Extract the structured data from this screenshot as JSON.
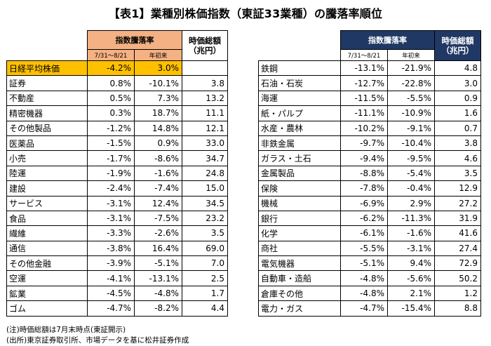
{
  "title": "【表1】業種別株価指数（東証33業種）の騰落率順位",
  "headers": {
    "change": "指数騰落率",
    "period1": "7/31～8/21",
    "period2": "年初来",
    "market_cap": "時価総額\n（兆円）"
  },
  "left_rows": [
    {
      "name": "日経平均株価",
      "p1": "-4.2%",
      "p2": "3.0%",
      "cap": ""
    },
    {
      "name": "証券",
      "p1": "0.8%",
      "p2": "-10.1%",
      "cap": "3.8"
    },
    {
      "name": "不動産",
      "p1": "0.5%",
      "p2": "7.3%",
      "cap": "13.2"
    },
    {
      "name": "精密機器",
      "p1": "0.3%",
      "p2": "18.7%",
      "cap": "11.1"
    },
    {
      "name": "その他製品",
      "p1": "-1.2%",
      "p2": "14.8%",
      "cap": "12.1"
    },
    {
      "name": "医薬品",
      "p1": "-1.5%",
      "p2": "0.9%",
      "cap": "33.0"
    },
    {
      "name": "小売",
      "p1": "-1.7%",
      "p2": "-8.6%",
      "cap": "34.7"
    },
    {
      "name": "陸運",
      "p1": "-1.9%",
      "p2": "-1.6%",
      "cap": "24.8"
    },
    {
      "name": "建設",
      "p1": "-2.4%",
      "p2": "-7.4%",
      "cap": "15.0"
    },
    {
      "name": "サービス",
      "p1": "-3.1%",
      "p2": "12.4%",
      "cap": "34.5"
    },
    {
      "name": "食品",
      "p1": "-3.1%",
      "p2": "-7.5%",
      "cap": "23.2"
    },
    {
      "name": "繊維",
      "p1": "-3.3%",
      "p2": "-2.6%",
      "cap": "3.5"
    },
    {
      "name": "通信",
      "p1": "-3.8%",
      "p2": "16.4%",
      "cap": "69.0"
    },
    {
      "name": "その他金融",
      "p1": "-3.9%",
      "p2": "-5.1%",
      "cap": "7.0"
    },
    {
      "name": "空運",
      "p1": "-4.1%",
      "p2": "-13.1%",
      "cap": "2.5"
    },
    {
      "name": "鉱業",
      "p1": "-4.5%",
      "p2": "-4.8%",
      "cap": "1.7"
    },
    {
      "name": "ゴム",
      "p1": "-4.7%",
      "p2": "-8.2%",
      "cap": "4.4"
    }
  ],
  "right_rows": [
    {
      "name": "鉄鋼",
      "p1": "-13.1%",
      "p2": "-21.9%",
      "cap": "4.8"
    },
    {
      "name": "石油・石炭",
      "p1": "-12.7%",
      "p2": "-22.8%",
      "cap": "3.0"
    },
    {
      "name": "海運",
      "p1": "-11.5%",
      "p2": "-5.5%",
      "cap": "0.9"
    },
    {
      "name": "紙・パルプ",
      "p1": "-11.1%",
      "p2": "-10.9%",
      "cap": "1.6"
    },
    {
      "name": "水産・農林",
      "p1": "-10.2%",
      "p2": "-9.1%",
      "cap": "0.7"
    },
    {
      "name": "非鉄金属",
      "p1": "-9.7%",
      "p2": "-10.4%",
      "cap": "3.8"
    },
    {
      "name": "ガラス・土石",
      "p1": "-9.4%",
      "p2": "-9.5%",
      "cap": "4.6"
    },
    {
      "name": "金属製品",
      "p1": "-8.8%",
      "p2": "-5.4%",
      "cap": "3.5"
    },
    {
      "name": "保険",
      "p1": "-7.8%",
      "p2": "-0.4%",
      "cap": "12.9"
    },
    {
      "name": "機械",
      "p1": "-6.9%",
      "p2": "2.9%",
      "cap": "27.2"
    },
    {
      "name": "銀行",
      "p1": "-6.2%",
      "p2": "-11.3%",
      "cap": "31.9"
    },
    {
      "name": "化学",
      "p1": "-6.1%",
      "p2": "-1.6%",
      "cap": "41.6"
    },
    {
      "name": "商社",
      "p1": "-5.5%",
      "p2": "-3.1%",
      "cap": "27.4"
    },
    {
      "name": "電気機器",
      "p1": "-5.1%",
      "p2": "9.4%",
      "cap": "72.9"
    },
    {
      "name": "自動車・造船",
      "p1": "-4.8%",
      "p2": "-5.6%",
      "cap": "50.2"
    },
    {
      "name": "倉庫その他",
      "p1": "-4.8%",
      "p2": "2.1%",
      "cap": "1.2"
    },
    {
      "name": "電力・ガス",
      "p1": "-4.7%",
      "p2": "-15.4%",
      "cap": "8.8"
    }
  ],
  "notes": [
    "(注)時価総額は7月末時点(東証開示)",
    "(出所)東京証券取引所、市場データを基に松井証券作成"
  ],
  "colors": {
    "left_header": "#F4B183",
    "right_header": "#203864",
    "highlight": "#FFC000"
  }
}
